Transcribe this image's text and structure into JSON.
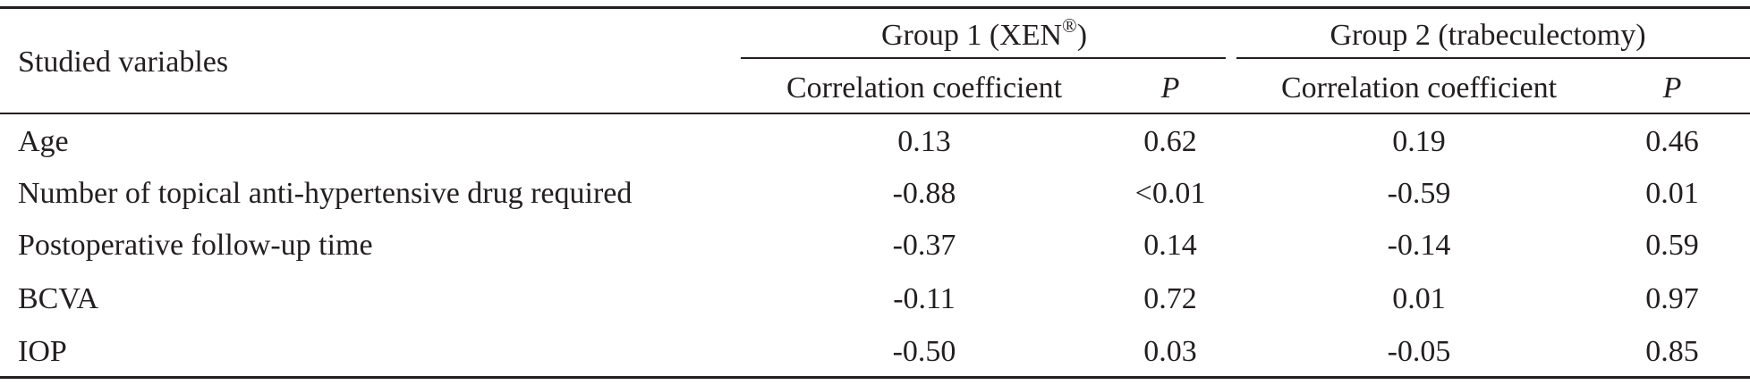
{
  "table": {
    "stub_header": "Studied variables",
    "groups": [
      {
        "label": "Group 1 (XEN",
        "label_sup": "®",
        "label_suffix": ")",
        "columns": [
          "Correlation coefficient",
          "P"
        ]
      },
      {
        "label": "Group 2 (trabeculectomy)",
        "label_sup": "",
        "label_suffix": "",
        "columns": [
          "Correlation coefficient",
          "P"
        ]
      }
    ],
    "rows": [
      {
        "variable": "Age",
        "g1_r": "0.13",
        "g1_p": "0.62",
        "g2_r": "0.19",
        "g2_p": "0.46"
      },
      {
        "variable": "Number of topical anti-hypertensive drug required",
        "g1_r": "-0.88",
        "g1_p": "<0.01",
        "g2_r": "-0.59",
        "g2_p": "0.01"
      },
      {
        "variable": "Postoperative follow-up time",
        "g1_r": "-0.37",
        "g1_p": "0.14",
        "g2_r": "-0.14",
        "g2_p": "0.59"
      },
      {
        "variable": "BCVA",
        "g1_r": "-0.11",
        "g1_p": "0.72",
        "g2_r": "0.01",
        "g2_p": "0.97"
      },
      {
        "variable": "IOP",
        "g1_r": "-0.50",
        "g1_p": "0.03",
        "g2_r": "-0.05",
        "g2_p": "0.85"
      }
    ]
  }
}
